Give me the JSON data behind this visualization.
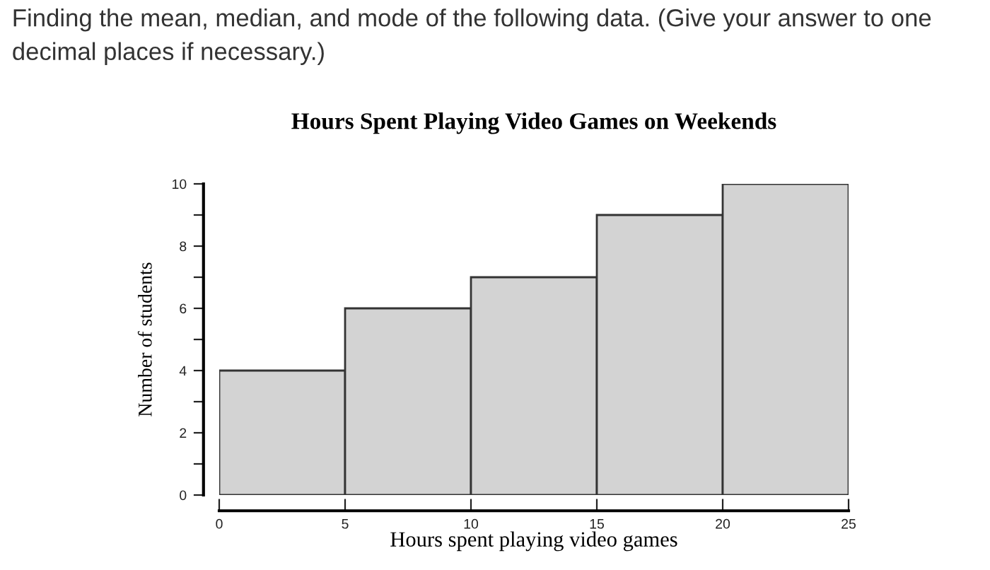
{
  "chart_data": {
    "type": "histogram",
    "title": "Hours Spent Playing Video Games on Weekends",
    "xlabel": "Hours spent playing video games",
    "ylabel": "Number of students",
    "annotations": [
      "Finding the mean, median, and mode of the following data. (Give your answer to one decimal places if necessary.)"
    ],
    "bins": [
      0,
      5,
      10,
      15,
      20,
      25
    ],
    "values": [
      4,
      6,
      7,
      9,
      10
    ],
    "color": "#d3d3d3",
    "xlim": [
      0,
      25
    ],
    "xticks": [
      0,
      5,
      10,
      15,
      20,
      25
    ],
    "ylim": [
      0,
      10
    ],
    "yticks": [
      0,
      {
        "value": 1,
        "label": null
      },
      2,
      {
        "value": 3,
        "label": null
      },
      4,
      {
        "value": 5,
        "label": null
      },
      6,
      {
        "value": 7,
        "label": null
      },
      8,
      {
        "value": 9,
        "label": null
      },
      10
    ],
    "grid": false,
    "legend": false
  }
}
